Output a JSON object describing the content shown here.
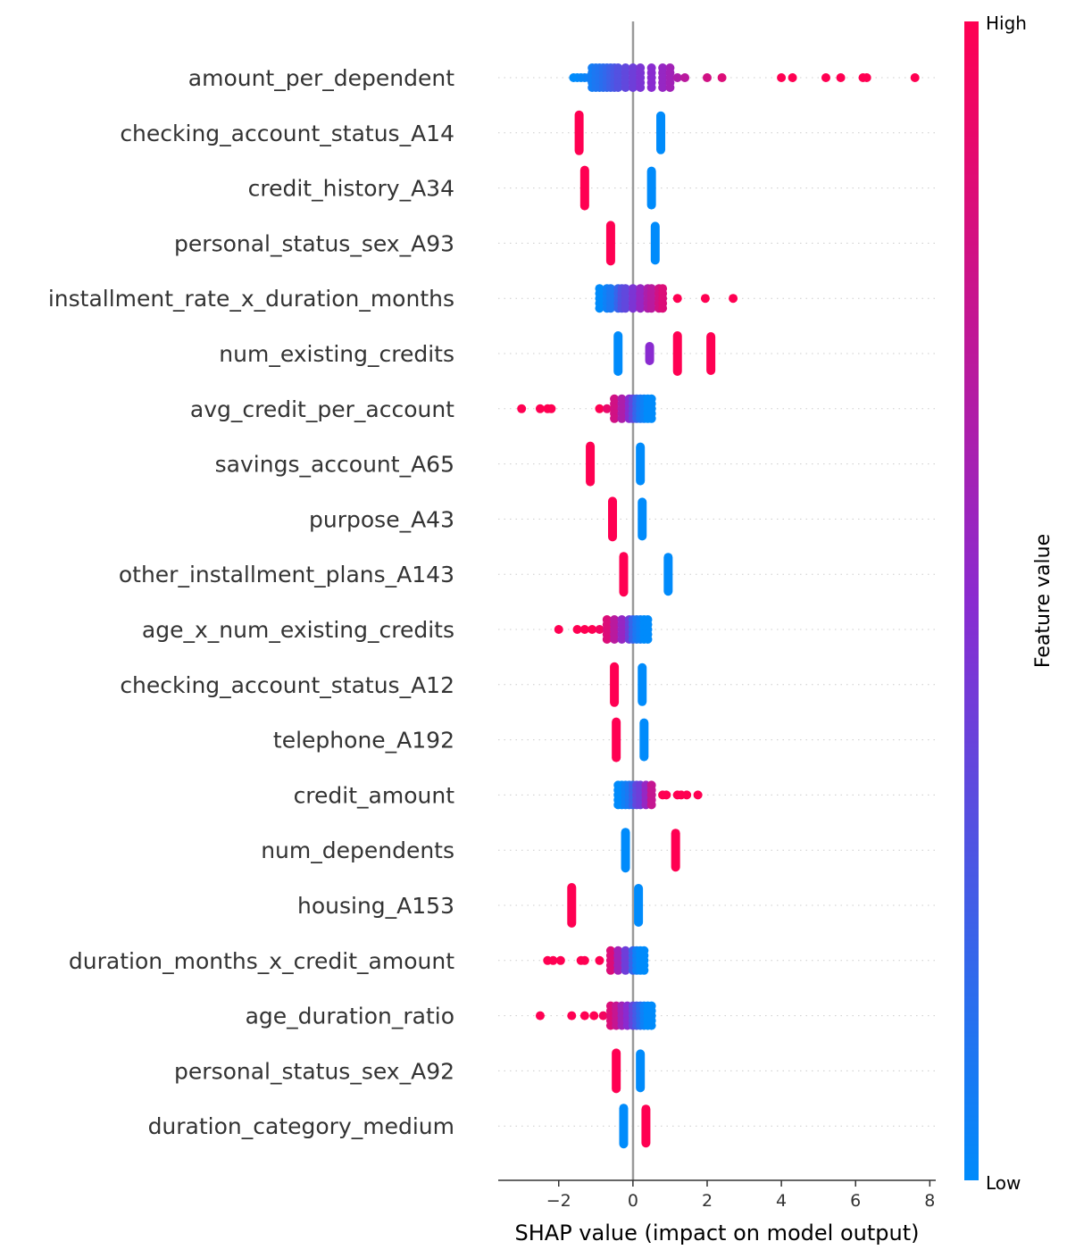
{
  "chart_data": {
    "type": "scatter",
    "subtype": "shap-beeswarm",
    "title": "",
    "xlabel": "SHAP value (impact on model output)",
    "ylabel": "",
    "xlim": [
      -3.63,
      8.16
    ],
    "xticks": [
      -2,
      0,
      2,
      4,
      6,
      8
    ],
    "xtick_labels": [
      "−2",
      "0",
      "2",
      "4",
      "6",
      "8"
    ],
    "colorbar": {
      "label": "Feature value",
      "high_label": "High",
      "low_label": "Low",
      "low_color": "#008bfb",
      "high_color": "#ff0052"
    },
    "features": [
      {
        "name": "amount_per_dependent",
        "points": [
          [
            -1.6,
            0.0
          ],
          [
            -1.5,
            0.0
          ],
          [
            -1.4,
            0.02
          ],
          [
            -1.3,
            0.03
          ],
          [
            -1.2,
            0.05
          ],
          [
            -1.1,
            0.07
          ],
          [
            -1.0,
            0.1
          ],
          [
            -0.9,
            0.12
          ],
          [
            -0.8,
            0.15
          ],
          [
            -0.7,
            0.18
          ],
          [
            -0.6,
            0.22
          ],
          [
            -0.5,
            0.26
          ],
          [
            -0.4,
            0.3
          ],
          [
            -0.2,
            0.35
          ],
          [
            0.0,
            0.4
          ],
          [
            0.2,
            0.45
          ],
          [
            0.5,
            0.5
          ],
          [
            0.8,
            0.55
          ],
          [
            1.0,
            0.6
          ],
          [
            1.2,
            0.65
          ],
          [
            1.4,
            0.7
          ],
          [
            2.0,
            0.8
          ],
          [
            2.4,
            0.85
          ],
          [
            4.0,
            1.0
          ],
          [
            4.3,
            1.0
          ],
          [
            5.2,
            1.0
          ],
          [
            5.6,
            1.0
          ],
          [
            6.2,
            1.0
          ],
          [
            6.3,
            1.0
          ],
          [
            7.6,
            1.0
          ]
        ]
      },
      {
        "name": "checking_account_status_A14",
        "points": [
          [
            -1.45,
            1.0
          ],
          [
            0.75,
            0.0
          ]
        ]
      },
      {
        "name": "credit_history_A34",
        "points": [
          [
            -1.3,
            1.0
          ],
          [
            0.5,
            0.0
          ]
        ]
      },
      {
        "name": "personal_status_sex_A93",
        "points": [
          [
            -0.6,
            1.0
          ],
          [
            0.6,
            0.0
          ]
        ]
      },
      {
        "name": "installment_rate_x_duration_months",
        "points": [
          [
            -0.9,
            0.0
          ],
          [
            -0.7,
            0.05
          ],
          [
            -0.6,
            0.1
          ],
          [
            -0.4,
            0.2
          ],
          [
            -0.3,
            0.3
          ],
          [
            -0.2,
            0.35
          ],
          [
            0.0,
            0.45
          ],
          [
            0.2,
            0.55
          ],
          [
            0.4,
            0.65
          ],
          [
            0.5,
            0.7
          ],
          [
            0.7,
            0.8
          ],
          [
            0.8,
            0.85
          ],
          [
            1.2,
            1.0
          ],
          [
            1.95,
            1.0
          ],
          [
            2.7,
            1.0
          ]
        ]
      },
      {
        "name": "num_existing_credits",
        "points": [
          [
            -0.4,
            0.0
          ],
          [
            0.45,
            0.5
          ],
          [
            1.2,
            1.0
          ],
          [
            2.1,
            1.0
          ]
        ]
      },
      {
        "name": "avg_credit_per_account",
        "points": [
          [
            -3.0,
            1.0
          ],
          [
            -2.5,
            1.0
          ],
          [
            -2.3,
            1.0
          ],
          [
            -2.2,
            1.0
          ],
          [
            -0.9,
            1.0
          ],
          [
            -0.7,
            0.9
          ],
          [
            -0.5,
            0.8
          ],
          [
            -0.3,
            0.65
          ],
          [
            -0.1,
            0.5
          ],
          [
            0.0,
            0.35
          ],
          [
            0.1,
            0.2
          ],
          [
            0.2,
            0.1
          ],
          [
            0.3,
            0.05
          ],
          [
            0.4,
            0.0
          ],
          [
            0.5,
            0.0
          ]
        ]
      },
      {
        "name": "savings_account_A65",
        "points": [
          [
            -1.15,
            1.0
          ],
          [
            0.2,
            0.0
          ]
        ]
      },
      {
        "name": "purpose_A43",
        "points": [
          [
            -0.55,
            1.0
          ],
          [
            0.25,
            0.0
          ]
        ]
      },
      {
        "name": "other_installment_plans_A143",
        "points": [
          [
            -0.25,
            1.0
          ],
          [
            0.95,
            0.0
          ]
        ]
      },
      {
        "name": "age_x_num_existing_credits",
        "points": [
          [
            -2.0,
            1.0
          ],
          [
            -1.5,
            1.0
          ],
          [
            -1.3,
            1.0
          ],
          [
            -1.1,
            1.0
          ],
          [
            -0.9,
            0.95
          ],
          [
            -0.7,
            0.85
          ],
          [
            -0.5,
            0.7
          ],
          [
            -0.3,
            0.55
          ],
          [
            -0.1,
            0.4
          ],
          [
            0.0,
            0.2
          ],
          [
            0.1,
            0.1
          ],
          [
            0.2,
            0.05
          ],
          [
            0.3,
            0.0
          ],
          [
            0.4,
            0.0
          ]
        ]
      },
      {
        "name": "checking_account_status_A12",
        "points": [
          [
            -0.5,
            1.0
          ],
          [
            0.25,
            0.0
          ]
        ]
      },
      {
        "name": "telephone_A192",
        "points": [
          [
            -0.45,
            1.0
          ],
          [
            0.3,
            0.0
          ]
        ]
      },
      {
        "name": "credit_amount",
        "points": [
          [
            -0.4,
            0.0
          ],
          [
            -0.3,
            0.0
          ],
          [
            -0.2,
            0.05
          ],
          [
            -0.1,
            0.1
          ],
          [
            0.0,
            0.2
          ],
          [
            0.1,
            0.35
          ],
          [
            0.2,
            0.4
          ],
          [
            0.35,
            0.55
          ],
          [
            0.5,
            0.75
          ],
          [
            0.8,
            1.0
          ],
          [
            0.9,
            1.0
          ],
          [
            1.2,
            1.0
          ],
          [
            1.3,
            1.0
          ],
          [
            1.45,
            1.0
          ],
          [
            1.75,
            1.0
          ]
        ]
      },
      {
        "name": "num_dependents",
        "points": [
          [
            -0.2,
            0.0
          ],
          [
            1.15,
            1.0
          ]
        ]
      },
      {
        "name": "housing_A153",
        "points": [
          [
            -1.65,
            1.0
          ],
          [
            0.15,
            0.0
          ]
        ]
      },
      {
        "name": "duration_months_x_credit_amount",
        "points": [
          [
            -2.3,
            1.0
          ],
          [
            -2.15,
            1.0
          ],
          [
            -1.95,
            1.0
          ],
          [
            -1.4,
            1.0
          ],
          [
            -1.3,
            1.0
          ],
          [
            -0.9,
            1.0
          ],
          [
            -0.6,
            0.85
          ],
          [
            -0.4,
            0.6
          ],
          [
            -0.2,
            0.4
          ],
          [
            0.0,
            0.2
          ],
          [
            0.1,
            0.05
          ],
          [
            0.2,
            0.0
          ],
          [
            0.3,
            0.0
          ]
        ]
      },
      {
        "name": "age_duration_ratio",
        "points": [
          [
            -2.5,
            1.0
          ],
          [
            -1.65,
            1.0
          ],
          [
            -1.3,
            1.0
          ],
          [
            -1.05,
            1.0
          ],
          [
            -0.8,
            0.95
          ],
          [
            -0.6,
            0.85
          ],
          [
            -0.45,
            0.75
          ],
          [
            -0.3,
            0.6
          ],
          [
            -0.15,
            0.5
          ],
          [
            0.0,
            0.35
          ],
          [
            0.1,
            0.25
          ],
          [
            0.2,
            0.15
          ],
          [
            0.3,
            0.05
          ],
          [
            0.4,
            0.0
          ],
          [
            0.5,
            0.0
          ]
        ]
      },
      {
        "name": "personal_status_sex_A92",
        "points": [
          [
            -0.45,
            1.0
          ],
          [
            0.2,
            0.0
          ]
        ]
      },
      {
        "name": "duration_category_medium",
        "points": [
          [
            -0.25,
            0.0
          ],
          [
            0.35,
            1.0
          ]
        ]
      }
    ]
  }
}
